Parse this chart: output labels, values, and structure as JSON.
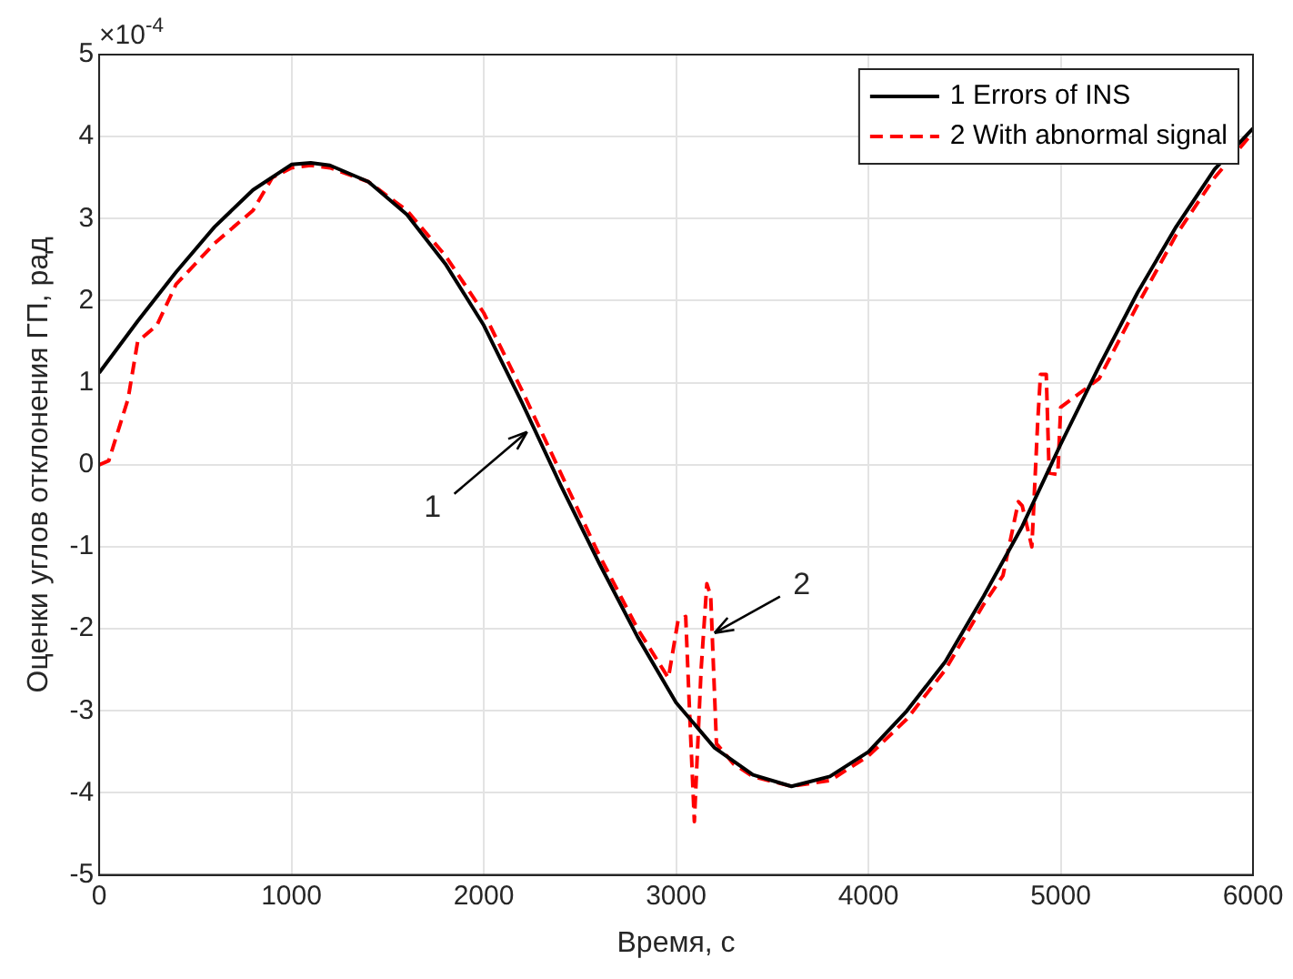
{
  "chart_data": {
    "type": "line",
    "xlabel": "Время, с",
    "ylabel": "Оценки углов отклонения ГП, рад",
    "xlim": [
      0,
      6000
    ],
    "xticks": [
      0,
      1000,
      2000,
      3000,
      4000,
      5000,
      6000
    ],
    "ylim": [
      -5,
      5
    ],
    "yticks": [
      -5,
      -4,
      -3,
      -2,
      -1,
      0,
      1,
      2,
      3,
      4,
      5
    ],
    "grid": true,
    "legend": "top right",
    "marker": "none",
    "annotations": [
      "×10$^{-4}$",
      {
        "text": "1",
        "x": 2225,
        "y": 0.4
      },
      {
        "text": "2",
        "x": 3200,
        "y": -2.05
      }
    ],
    "series": [
      {
        "name": "1 Errors of INS",
        "color": "#000000",
        "line_style": "solid",
        "x": [
          0,
          200,
          400,
          600,
          800,
          1000,
          1100,
          1200,
          1400,
          1600,
          1800,
          2000,
          2200,
          2400,
          2600,
          2800,
          3000,
          3200,
          3400,
          3600,
          3800,
          4000,
          4200,
          4400,
          4600,
          4800,
          5000,
          5200,
          5400,
          5600,
          5800,
          6000
        ],
        "values": [
          1.12,
          1.75,
          2.35,
          2.9,
          3.35,
          3.66,
          3.68,
          3.65,
          3.45,
          3.05,
          2.45,
          1.7,
          0.75,
          -0.25,
          -1.2,
          -2.1,
          -2.9,
          -3.45,
          -3.78,
          -3.92,
          -3.8,
          -3.5,
          -3.0,
          -2.4,
          -1.6,
          -0.75,
          0.25,
          1.2,
          2.1,
          2.9,
          3.6,
          4.1
        ]
      },
      {
        "name": "2 With abnormal signal",
        "color": "#ff0000",
        "line_style": "dashed",
        "x": [
          0,
          50,
          150,
          200,
          300,
          400,
          600,
          800,
          900,
          1000,
          1100,
          1200,
          1400,
          1600,
          1800,
          2000,
          2200,
          2400,
          2600,
          2800,
          2960,
          3010,
          3050,
          3070,
          3095,
          3130,
          3160,
          3180,
          3210,
          3300,
          3400,
          3600,
          3800,
          4000,
          4200,
          4400,
          4600,
          4700,
          4780,
          4800,
          4850,
          4880,
          4895,
          4925,
          4940,
          4985,
          5000,
          5200,
          5400,
          5600,
          5800,
          6000
        ],
        "values": [
          0,
          0.05,
          0.8,
          1.5,
          1.7,
          2.2,
          2.7,
          3.1,
          3.5,
          3.62,
          3.65,
          3.62,
          3.45,
          3.1,
          2.55,
          1.85,
          0.9,
          -0.1,
          -1.1,
          -2.0,
          -2.6,
          -1.9,
          -1.85,
          -3.0,
          -4.35,
          -2.5,
          -1.45,
          -1.6,
          -3.4,
          -3.65,
          -3.8,
          -3.92,
          -3.85,
          -3.55,
          -3.1,
          -2.5,
          -1.7,
          -1.35,
          -0.45,
          -0.5,
          -1.0,
          0.5,
          1.1,
          1.1,
          -0.1,
          -0.12,
          0.7,
          1.05,
          1.95,
          2.8,
          3.5,
          4.05
        ]
      }
    ]
  }
}
